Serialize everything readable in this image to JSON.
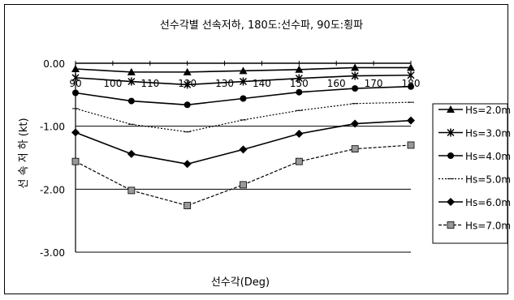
{
  "chart_data": {
    "type": "line",
    "title": "선수각별 선속저하, 180도:선수파, 90도:횡파",
    "xlabel": "선수각(Deg)",
    "ylabel": "선 속 저 하 (kt)",
    "xlim": [
      90,
      180
    ],
    "ylim": [
      -3.0,
      0.0
    ],
    "x_tick_labels": [
      "90",
      "100",
      "110",
      "120",
      "130",
      "140",
      "150",
      "160",
      "170",
      "180"
    ],
    "y_tick_labels": [
      "0.00",
      "-1.00",
      "-2.00",
      "-3.00"
    ],
    "y_ticks": [
      0.0,
      -1.0,
      -2.0,
      -3.0
    ],
    "grid": true,
    "legend_position": "right",
    "series": [
      {
        "name": "Hs=2.0m",
        "marker": "triangle",
        "line": "solid",
        "x": [
          90,
          105,
          120,
          135,
          150,
          165,
          180
        ],
        "y": [
          -0.09,
          -0.14,
          -0.14,
          -0.12,
          -0.1,
          -0.07,
          -0.07
        ]
      },
      {
        "name": "Hs=3.0m",
        "marker": "star",
        "line": "solid",
        "x": [
          90,
          105,
          120,
          135,
          150,
          165,
          180
        ],
        "y": [
          -0.23,
          -0.29,
          -0.34,
          -0.29,
          -0.24,
          -0.2,
          -0.19
        ]
      },
      {
        "name": "Hs=4.0m",
        "marker": "circle",
        "line": "solid",
        "x": [
          90,
          105,
          120,
          135,
          150,
          165,
          180
        ],
        "y": [
          -0.47,
          -0.6,
          -0.66,
          -0.56,
          -0.46,
          -0.4,
          -0.37
        ]
      },
      {
        "name": "Hs=5.0m",
        "marker": "plus",
        "line": "dotted",
        "x": [
          90,
          105,
          120,
          135,
          150,
          165,
          180
        ],
        "y": [
          -0.72,
          -0.97,
          -1.09,
          -0.9,
          -0.75,
          -0.64,
          -0.62
        ]
      },
      {
        "name": "Hs=6.0m",
        "marker": "diamond",
        "line": "solid",
        "x": [
          90,
          105,
          120,
          135,
          150,
          165,
          180
        ],
        "y": [
          -1.1,
          -1.44,
          -1.6,
          -1.37,
          -1.12,
          -0.96,
          -0.91
        ]
      },
      {
        "name": "Hs=7.0m",
        "marker": "square",
        "line": "dashed",
        "x": [
          90,
          105,
          120,
          135,
          150,
          165,
          180
        ],
        "y": [
          -1.56,
          -2.02,
          -2.26,
          -1.93,
          -1.56,
          -1.36,
          -1.3
        ]
      }
    ]
  }
}
